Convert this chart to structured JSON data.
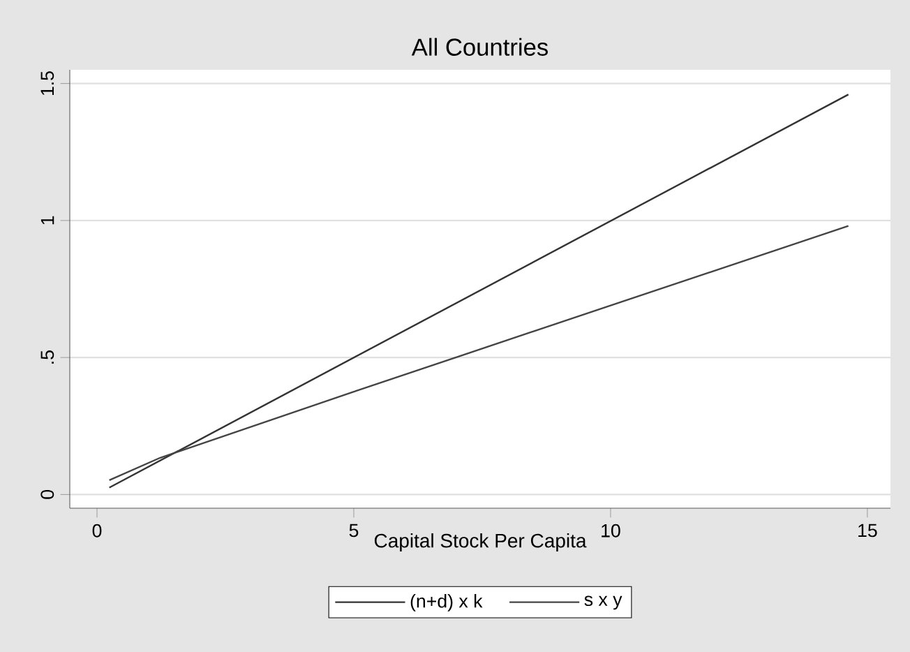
{
  "chart_data": {
    "type": "line",
    "title": "All Countries",
    "xlabel": "Capital Stock Per Capita",
    "xlim": [
      -0.53,
      15.45
    ],
    "xticks": [
      0,
      5,
      10,
      15
    ],
    "ylim": [
      -0.05,
      1.55
    ],
    "yticks": [
      0,
      {
        "value": 0.5,
        "label": ".5"
      },
      1,
      1.5
    ],
    "grid": "y",
    "legend": "bottom",
    "series": [
      {
        "name": "(n+d) x k",
        "color": "#333333",
        "x": [
          0.24,
          14.63
        ],
        "values": [
          0.025,
          1.46
        ]
      },
      {
        "name": "s x y",
        "color": "#444444",
        "x": [
          0.24,
          1.23,
          5,
          10,
          14.63
        ],
        "values": [
          0.052,
          0.134,
          0.375,
          0.69,
          0.98
        ]
      }
    ]
  }
}
